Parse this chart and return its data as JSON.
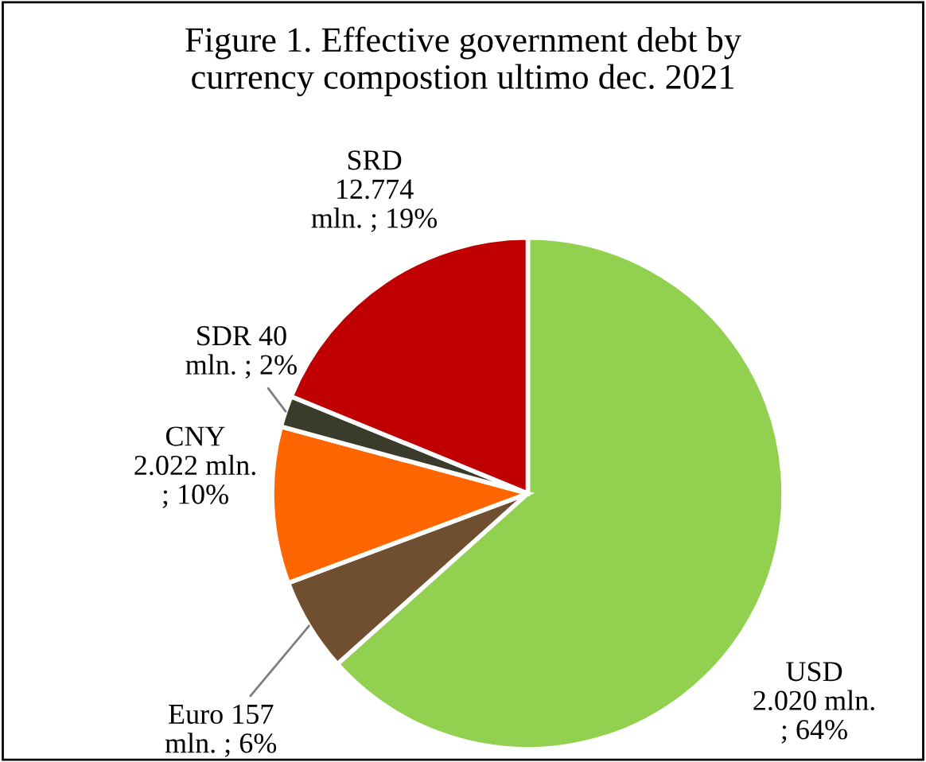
{
  "chart_data": {
    "type": "pie",
    "title": "Figure 1. Effective government debt by\ncurrency compostion ultimo dec. 2021",
    "categories": [
      "USD",
      "Euro",
      "CNY",
      "SDR",
      "SRD"
    ],
    "values": [
      64,
      6,
      10,
      2,
      19
    ],
    "value_labels": [
      "\n2.020 mln.\n; 64%",
      " 157\nmln. ; 6%",
      "\n2.022 mln.\n; 10%",
      " 40\nmln. ; 2%",
      "\n12.774\nmln. ; 19%"
    ],
    "colors": [
      "#92d050",
      "#6f4f30",
      "#ff6600",
      "#3b3b2b",
      "#c00000"
    ]
  }
}
